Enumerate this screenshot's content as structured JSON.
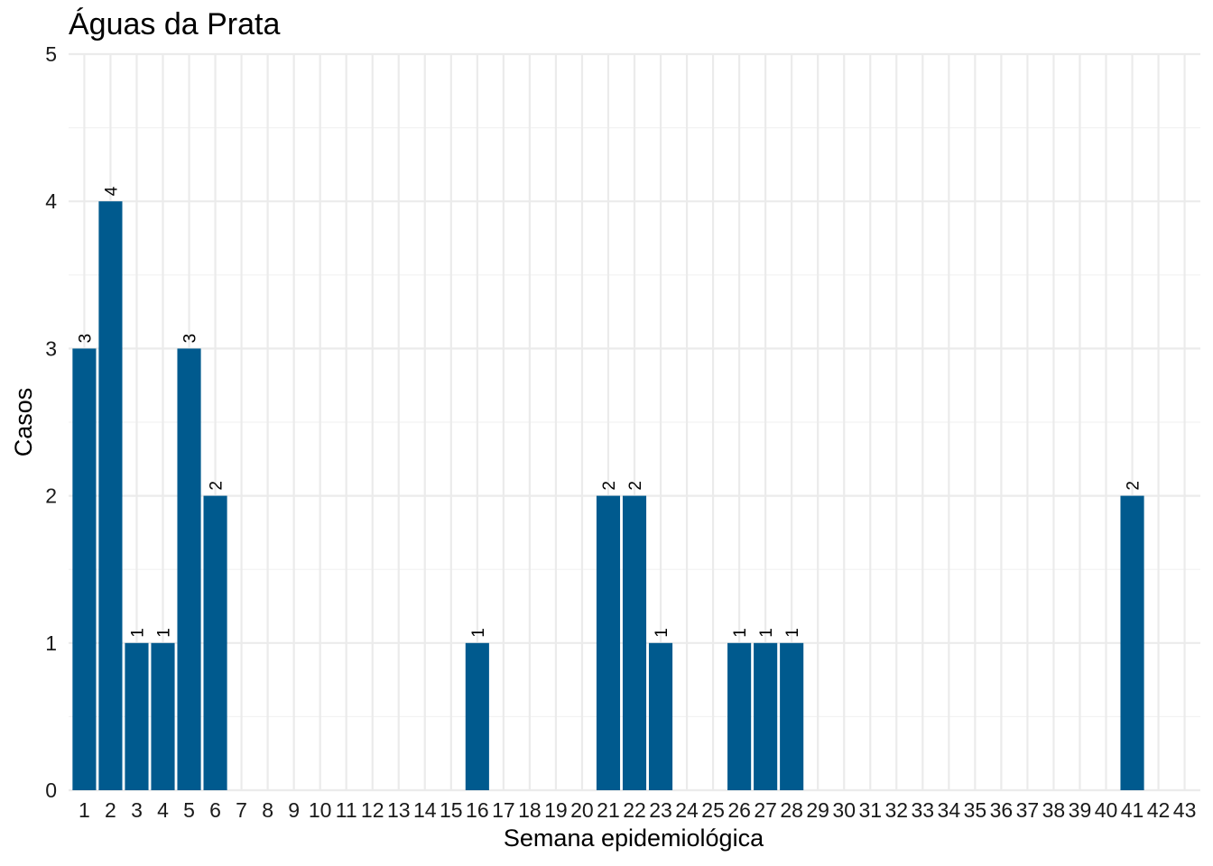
{
  "chart_data": {
    "type": "bar",
    "title": "Águas da Prata",
    "xlabel": "Semana epidemiológica",
    "ylabel": "Casos",
    "ylim": [
      0,
      5
    ],
    "yticks": [
      0,
      1,
      2,
      3,
      4,
      5
    ],
    "grid": true,
    "legend": "none",
    "bar_color": "#005a8e",
    "categories": [
      "1",
      "2",
      "3",
      "4",
      "5",
      "6",
      "7",
      "8",
      "9",
      "10",
      "11",
      "12",
      "13",
      "14",
      "15",
      "16",
      "17",
      "18",
      "19",
      "20",
      "21",
      "22",
      "23",
      "24",
      "25",
      "26",
      "27",
      "28",
      "29",
      "30",
      "31",
      "32",
      "33",
      "34",
      "35",
      "36",
      "37",
      "38",
      "39",
      "40",
      "41",
      "42",
      "43"
    ],
    "values": [
      3,
      4,
      1,
      1,
      3,
      2,
      0,
      0,
      0,
      0,
      0,
      0,
      0,
      0,
      0,
      1,
      0,
      0,
      0,
      0,
      2,
      2,
      1,
      0,
      0,
      1,
      1,
      1,
      0,
      0,
      0,
      0,
      0,
      0,
      0,
      0,
      0,
      0,
      0,
      0,
      2,
      0,
      0
    ]
  }
}
